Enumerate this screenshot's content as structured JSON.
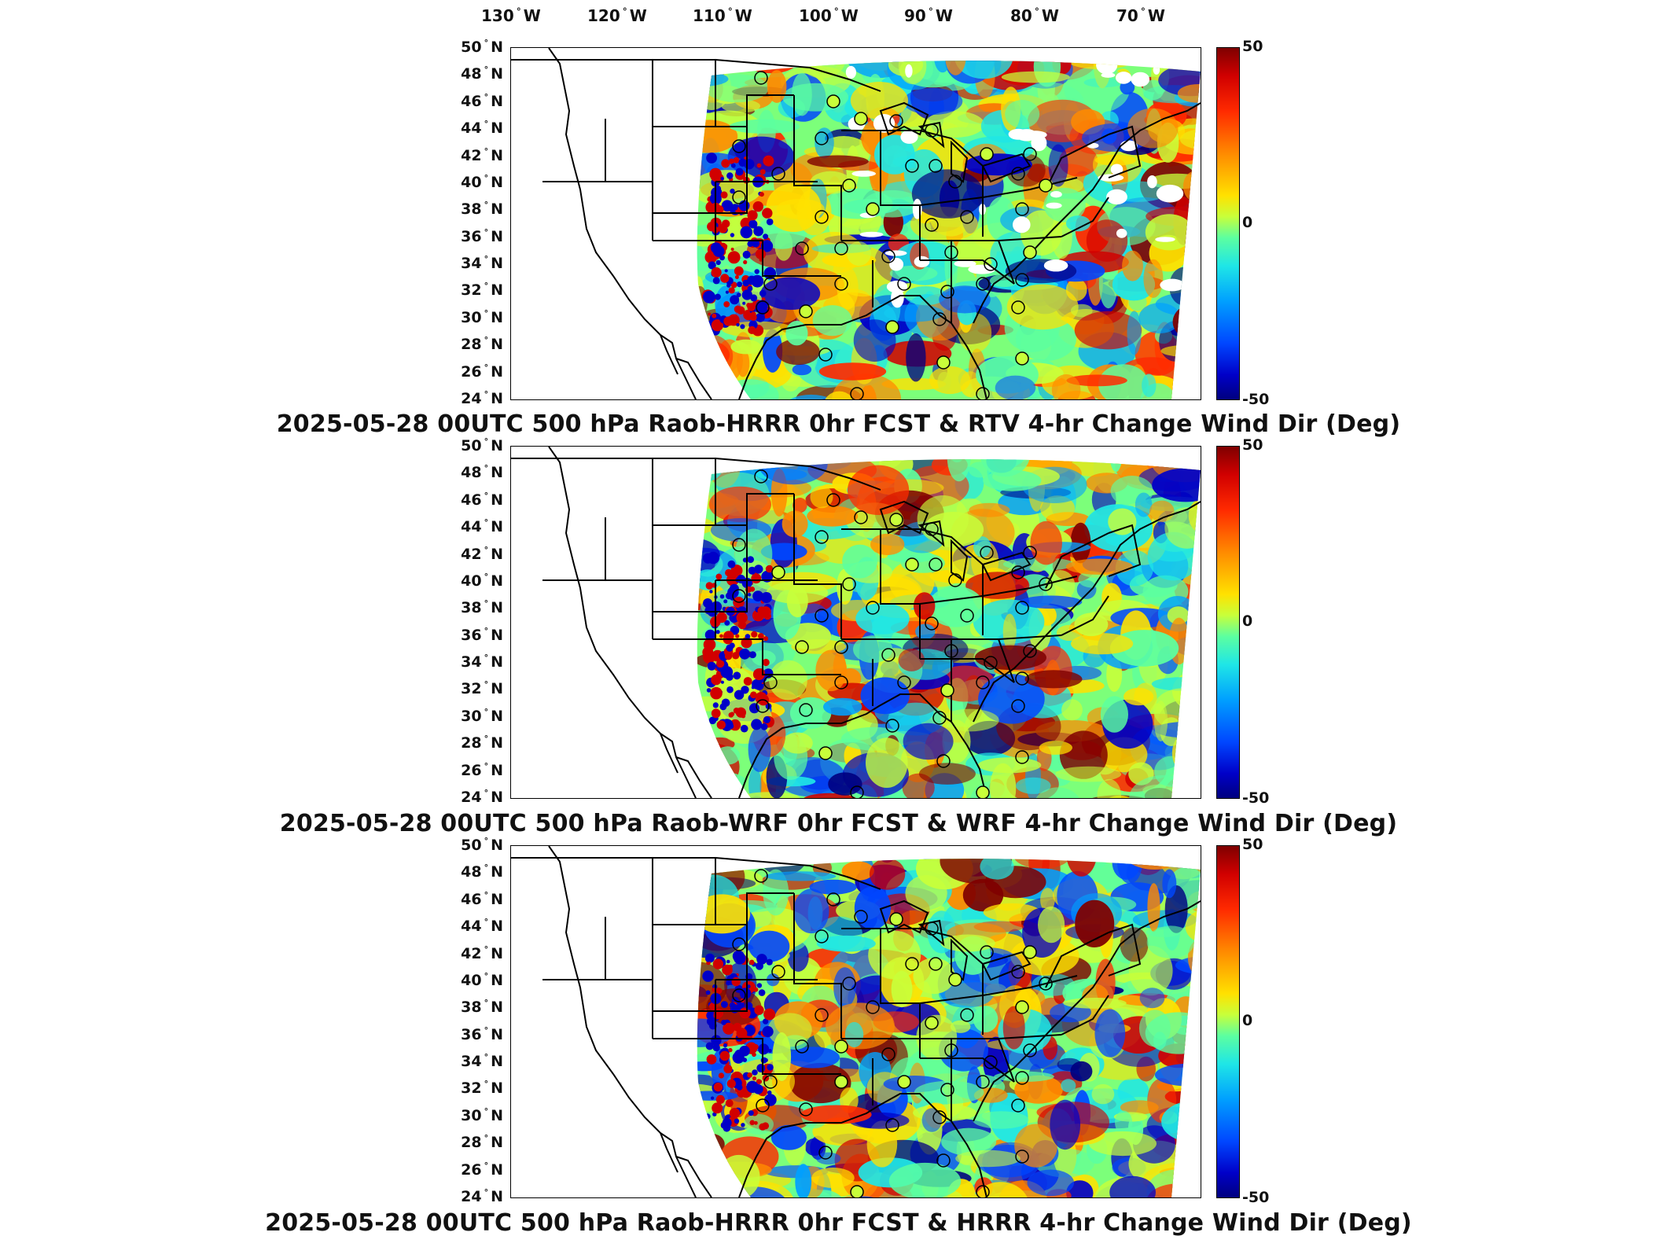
{
  "lon_axis": [
    "130",
    "120",
    "110",
    "100",
    "90",
    "80",
    "70"
  ],
  "lon_hemi": "W",
  "lat_axis": [
    "50",
    "48",
    "46",
    "44",
    "42",
    "40",
    "38",
    "36",
    "34",
    "32",
    "30",
    "28",
    "26",
    "24"
  ],
  "lat_hemi": "N",
  "degree_symbol": "°",
  "panels": [
    {
      "title": "2025-05-28 00UTC 500 hPa Raob-HRRR 0hr FCST & RTV 4-hr Change Wind Dir (Deg)",
      "colorbar": {
        "max": "50",
        "mid": "0",
        "min": "-50"
      }
    },
    {
      "title": "2025-05-28 00UTC 500 hPa Raob-WRF 0hr FCST & WRF 4-hr Change Wind Dir (Deg)",
      "colorbar": {
        "max": "50",
        "mid": "0",
        "min": "-50"
      }
    },
    {
      "title": "2025-05-28 00UTC 500 hPa Raob-HRRR 0hr FCST & HRRR 4-hr Change Wind Dir (Deg)",
      "colorbar": {
        "max": "50",
        "mid": "0",
        "min": "-50"
      }
    }
  ],
  "colors": {
    "colormap": [
      "#00007f",
      "#0000c8",
      "#0047ff",
      "#00a0ff",
      "#1fe6e6",
      "#5cffa0",
      "#c8ff3a",
      "#ffe100",
      "#ff8a00",
      "#ff2a00",
      "#d10000",
      "#7f0000"
    ],
    "outline": "#000000"
  }
}
